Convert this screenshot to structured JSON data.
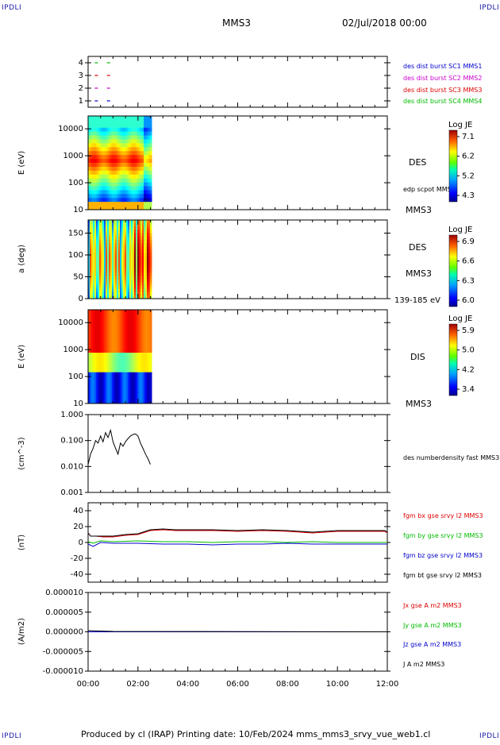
{
  "header": {
    "corner_tl": "IPDLI",
    "corner_tr": "IPDLI",
    "corner_bl": "IPDLI",
    "corner_br": "IPDLI",
    "spacecraft": "MMS3",
    "date": "02/Jul/2018 00:00"
  },
  "footer": {
    "text": "Produced by cl (IRAP)   Printing date: 10/Feb/2024   mms_mms3_srvy_vue_web1.cl"
  },
  "chart_data": [
    {
      "type": "scatter",
      "panel": "burst-flags",
      "yticks": [
        "4",
        "3",
        "2",
        "1"
      ],
      "ylim": [
        0.5,
        4.5
      ],
      "series": [
        {
          "name": "des dist burst SC1 MMS1",
          "color": "#0000cc",
          "level": 1,
          "x_hours": [
            0.33,
            0.82
          ]
        },
        {
          "name": "des dist burst SC2 MMS2",
          "color": "#cc00cc",
          "level": 2,
          "x_hours": [
            0.33,
            0.82
          ]
        },
        {
          "name": "des dist burst SC3 MMS3",
          "color": "#dd0000",
          "level": 3,
          "x_hours": [
            0.33,
            0.82
          ]
        },
        {
          "name": "des dist burst SC4 MMS4",
          "color": "#00bb00",
          "level": 4,
          "x_hours": [
            0.33,
            0.82
          ]
        }
      ]
    },
    {
      "type": "heatmap",
      "panel": "des-energy",
      "ylabel": "E (eV)",
      "yscale": "log",
      "ylim": [
        10,
        30000
      ],
      "yticks": [
        "10000",
        "1000",
        "100",
        "10"
      ],
      "label": "DES",
      "sublabel": "MMS3",
      "overlay": "edp scpot MMS3",
      "colorbar": {
        "title": "Log JE",
        "ticks": [
          "7.1",
          "6.2",
          "5.2",
          "4.3"
        ],
        "range": [
          4.3,
          7.1
        ]
      },
      "data_extent_hours": [
        0,
        2.55
      ]
    },
    {
      "type": "heatmap",
      "panel": "des-pitch",
      "ylabel": "a (deg)",
      "ylim": [
        0,
        180
      ],
      "yticks": [
        "150",
        "100",
        "50",
        "0"
      ],
      "label": "DES",
      "sublabel": "MMS3",
      "energy_band": "139-185 eV",
      "colorbar": {
        "title": "Log JE",
        "ticks": [
          "6.9",
          "6.6",
          "6.3",
          "6.0"
        ],
        "range": [
          6.0,
          6.9
        ]
      },
      "data_extent_hours": [
        0,
        2.55
      ]
    },
    {
      "type": "heatmap",
      "panel": "dis-energy",
      "ylabel": "E (eV)",
      "yscale": "log",
      "ylim": [
        10,
        30000
      ],
      "yticks": [
        "10000",
        "1000",
        "100",
        "10"
      ],
      "label": "DIS",
      "sublabel": "MMS3",
      "colorbar": {
        "title": "Log JE",
        "ticks": [
          "5.9",
          "5.0",
          "4.2",
          "3.4"
        ],
        "range": [
          3.4,
          5.9
        ]
      },
      "data_extent_hours": [
        0,
        2.55
      ]
    },
    {
      "type": "line",
      "panel": "density",
      "ylabel": "(cm^-3)",
      "yscale": "log",
      "ylim": [
        0.001,
        1.0
      ],
      "yticks": [
        "1.000",
        "0.100",
        "0.010",
        "0.001"
      ],
      "series": [
        {
          "name": "des numberdensity fast MMS3",
          "color": "#000000",
          "x": [
            0.0,
            0.1,
            0.2,
            0.3,
            0.4,
            0.5,
            0.6,
            0.7,
            0.8,
            0.9,
            1.0,
            1.1,
            1.2,
            1.3,
            1.4,
            1.5,
            1.6,
            1.7,
            1.8,
            1.9,
            2.0,
            2.1,
            2.2,
            2.3,
            2.4,
            2.5
          ],
          "y": [
            0.012,
            0.03,
            0.05,
            0.1,
            0.08,
            0.15,
            0.09,
            0.2,
            0.13,
            0.25,
            0.09,
            0.05,
            0.03,
            0.08,
            0.06,
            0.09,
            0.12,
            0.15,
            0.17,
            0.18,
            0.15,
            0.08,
            0.05,
            0.03,
            0.02,
            0.012
          ]
        }
      ]
    },
    {
      "type": "line",
      "panel": "magnetic-field",
      "ylabel": "(nT)",
      "ylim": [
        -50,
        50
      ],
      "yticks": [
        "40",
        "20",
        "0",
        "-20",
        "-40"
      ],
      "series": [
        {
          "name": "fgm bx gse srvy l2 MMS3",
          "color": "#dd0000",
          "x": [
            0,
            0.1,
            0.3,
            0.6,
            1.0,
            1.5,
            2.0,
            2.5,
            3.0,
            3.5,
            4.0,
            5.0,
            6.0,
            7.0,
            8.0,
            9.0,
            10.0,
            11.0,
            11.9,
            12.0
          ],
          "y": [
            12,
            8,
            8,
            7,
            7,
            9,
            10,
            15,
            16,
            15,
            15,
            15,
            14,
            15,
            14,
            12,
            14,
            14,
            14,
            12
          ]
        },
        {
          "name": "fgm by gse srvy l2 MMS3",
          "color": "#00bb00",
          "x": [
            0,
            0.2,
            0.5,
            1.0,
            2.0,
            3.0,
            4.0,
            5.0,
            6.0,
            7.0,
            8.0,
            9.0,
            10.0,
            11.0,
            12.0
          ],
          "y": [
            1,
            -1,
            2,
            1,
            2,
            1,
            1,
            0,
            1,
            1,
            0,
            1,
            0,
            0,
            0
          ]
        },
        {
          "name": "fgm bz gse srvy l2 MMS3",
          "color": "#0000cc",
          "x": [
            0,
            0.2,
            0.5,
            1.0,
            2.0,
            3.0,
            4.0,
            5.0,
            6.0,
            7.0,
            8.0,
            9.0,
            10.0,
            11.0,
            12.0
          ],
          "y": [
            -2,
            -5,
            0,
            -1,
            -1,
            -2,
            -2,
            -3,
            -2,
            -2,
            -1,
            -2,
            -2,
            -2,
            -2
          ]
        },
        {
          "name": "fgm bt gse srvy l2 MMS3",
          "color": "#000000",
          "x": [
            0,
            0.1,
            0.3,
            0.6,
            1.0,
            1.5,
            2.0,
            2.5,
            3.0,
            3.5,
            4.0,
            5.0,
            6.0,
            7.0,
            8.0,
            9.0,
            10.0,
            11.0,
            11.9,
            12.0
          ],
          "y": [
            12,
            8,
            8,
            8,
            8,
            10,
            11,
            16,
            17,
            16,
            16,
            16,
            15,
            16,
            15,
            13,
            15,
            15,
            15,
            13
          ]
        }
      ]
    },
    {
      "type": "line",
      "panel": "current-density",
      "ylabel": "(A/m2)",
      "ylim": [
        -1e-05,
        1e-05
      ],
      "yticks": [
        "0.000010",
        "0.000005",
        "0.000000",
        "-0.000005",
        "-0.000010"
      ],
      "series": [
        {
          "name": "Jx gse A m2 MMS3",
          "color": "#dd0000",
          "x": [
            0,
            12
          ],
          "y": [
            0,
            0
          ]
        },
        {
          "name": "Jy gse A m2 MMS3",
          "color": "#00bb00",
          "x": [
            0,
            12
          ],
          "y": [
            0,
            0
          ]
        },
        {
          "name": "Jz gse A m2 MMS3",
          "color": "#0000cc",
          "x": [
            0,
            12
          ],
          "y": [
            0,
            0
          ]
        },
        {
          "name": "J A m2 MMS3",
          "color": "#000000",
          "x": [
            0,
            0.5,
            1.0,
            12
          ],
          "y": [
            3e-07,
            2e-07,
            1e-07,
            0
          ]
        }
      ]
    },
    {
      "type": "axis",
      "panel": "time-axis",
      "xlim": [
        0,
        12
      ],
      "xticks": [
        "00:00",
        "02:00",
        "04:00",
        "06:00",
        "08:00",
        "10:00",
        "12:00"
      ]
    }
  ]
}
